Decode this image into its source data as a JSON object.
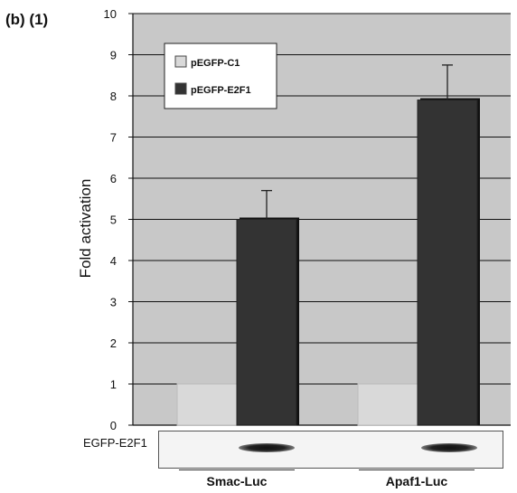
{
  "panel_label": "(b) (1)",
  "blot": {
    "label": "EGFP-E2F1"
  },
  "chart_data": {
    "type": "bar",
    "title": "",
    "xlabel": "",
    "ylabel": "Fold  activation",
    "ylim": [
      0,
      10
    ],
    "yticks": [
      "0",
      "1",
      "2",
      "3",
      "4",
      "5",
      "6",
      "7",
      "8",
      "9",
      "10"
    ],
    "grid": true,
    "legend_position": "top-left",
    "categories": [
      "Smac-Luc",
      "Apaf1-Luc"
    ],
    "series": [
      {
        "name": "pEGFP-C1",
        "values": [
          1,
          1
        ],
        "errors": [
          0,
          0
        ],
        "color": "#d9d9d9"
      },
      {
        "name": "pEGFP-E2F1",
        "values": [
          5.0,
          7.9
        ],
        "errors": [
          0.7,
          0.85
        ],
        "color": "#333333"
      }
    ],
    "plot_background": "#c8c8c8"
  }
}
